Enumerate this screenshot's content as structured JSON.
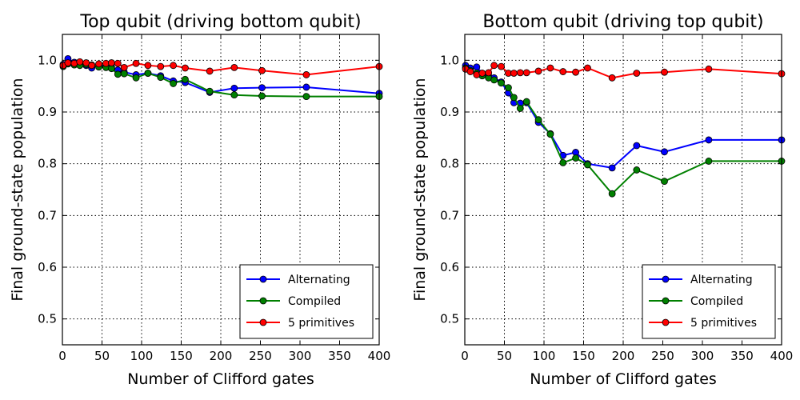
{
  "chart_data": [
    {
      "type": "line",
      "title": "Top qubit (driving bottom qubit)",
      "xlabel": "Number of Clifford gates",
      "ylabel": "Final ground-state population",
      "xlim": [
        0,
        400
      ],
      "ylim": [
        0.45,
        1.05
      ],
      "xticks": [
        "0",
        "50",
        "100",
        "150",
        "200",
        "250",
        "300",
        "350",
        "400"
      ],
      "yticks": [
        "0.5",
        "0.6",
        "0.7",
        "0.8",
        "0.9",
        "1.0"
      ],
      "grid": true,
      "legend_position": "bottom-right",
      "series": [
        {
          "name": "Alternating",
          "color": "#0000ff",
          "x": [
            1,
            7,
            15,
            22,
            30,
            37,
            46,
            55,
            62,
            70,
            78,
            93,
            108,
            124,
            140,
            155,
            186,
            217,
            252,
            308,
            400
          ],
          "y": [
            0.992,
            1.003,
            0.996,
            0.994,
            0.99,
            0.985,
            0.991,
            0.988,
            0.987,
            0.981,
            0.977,
            0.972,
            0.975,
            0.97,
            0.96,
            0.957,
            0.938,
            0.946,
            0.947,
            0.948,
            0.936
          ]
        },
        {
          "name": "Compiled",
          "color": "#008000",
          "x": [
            1,
            7,
            15,
            22,
            30,
            37,
            46,
            55,
            62,
            70,
            78,
            93,
            108,
            124,
            140,
            155,
            186,
            217,
            252,
            308,
            400
          ],
          "y": [
            0.988,
            0.993,
            0.991,
            0.99,
            0.992,
            0.991,
            0.987,
            0.986,
            0.984,
            0.973,
            0.974,
            0.966,
            0.975,
            0.967,
            0.955,
            0.963,
            0.94,
            0.933,
            0.931,
            0.93,
            0.93
          ]
        },
        {
          "name": "5 primitives",
          "color": "#ff0000",
          "x": [
            1,
            7,
            15,
            22,
            30,
            37,
            46,
            55,
            62,
            70,
            78,
            93,
            108,
            124,
            140,
            155,
            186,
            217,
            252,
            308,
            400
          ],
          "y": [
            0.99,
            0.995,
            0.994,
            0.997,
            0.995,
            0.99,
            0.993,
            0.994,
            0.995,
            0.994,
            0.986,
            0.994,
            0.99,
            0.988,
            0.99,
            0.985,
            0.979,
            0.986,
            0.98,
            0.972,
            0.988
          ]
        }
      ]
    },
    {
      "type": "line",
      "title": "Bottom qubit (driving top qubit)",
      "xlabel": "Number of Clifford gates",
      "ylabel": "Final ground-state population",
      "xlim": [
        0,
        400
      ],
      "ylim": [
        0.45,
        1.05
      ],
      "xticks": [
        "0",
        "50",
        "100",
        "150",
        "200",
        "250",
        "300",
        "350",
        "400"
      ],
      "yticks": [
        "0.5",
        "0.6",
        "0.7",
        "0.8",
        "0.9",
        "1.0"
      ],
      "grid": true,
      "legend_position": "bottom-right",
      "series": [
        {
          "name": "Alternating",
          "color": "#0000ff",
          "x": [
            1,
            7,
            15,
            22,
            30,
            37,
            46,
            55,
            62,
            70,
            78,
            93,
            108,
            124,
            140,
            155,
            186,
            217,
            252,
            308,
            400
          ],
          "y": [
            0.99,
            0.985,
            0.987,
            0.975,
            0.97,
            0.966,
            0.958,
            0.937,
            0.918,
            0.917,
            0.918,
            0.88,
            0.858,
            0.816,
            0.822,
            0.8,
            0.792,
            0.835,
            0.823,
            0.846,
            0.846
          ]
        },
        {
          "name": "Compiled",
          "color": "#008000",
          "x": [
            1,
            7,
            15,
            22,
            30,
            37,
            46,
            55,
            62,
            70,
            78,
            93,
            108,
            124,
            140,
            155,
            186,
            217,
            252,
            308,
            400
          ],
          "y": [
            0.985,
            0.98,
            0.975,
            0.97,
            0.966,
            0.962,
            0.956,
            0.947,
            0.928,
            0.907,
            0.92,
            0.885,
            0.857,
            0.802,
            0.811,
            0.798,
            0.742,
            0.788,
            0.766,
            0.805,
            0.805
          ]
        },
        {
          "name": "5 primitives",
          "color": "#ff0000",
          "x": [
            1,
            7,
            15,
            22,
            30,
            37,
            46,
            55,
            62,
            70,
            78,
            93,
            108,
            124,
            140,
            155,
            186,
            217,
            252,
            308,
            400
          ],
          "y": [
            0.983,
            0.978,
            0.972,
            0.975,
            0.976,
            0.99,
            0.988,
            0.975,
            0.975,
            0.976,
            0.976,
            0.979,
            0.985,
            0.978,
            0.977,
            0.985,
            0.966,
            0.975,
            0.977,
            0.983,
            0.974
          ]
        }
      ]
    }
  ]
}
